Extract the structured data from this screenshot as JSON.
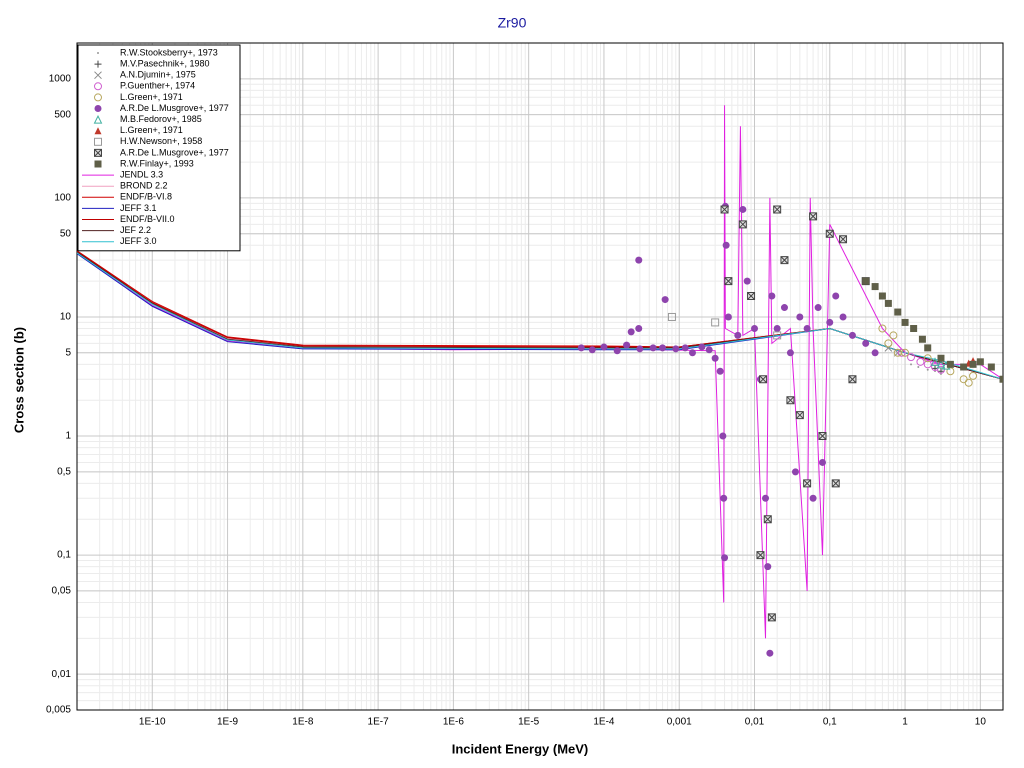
{
  "chart_data": {
    "type": "scatter",
    "title": "Zr90",
    "xlabel": "Incident Energy (MeV)",
    "ylabel": "Cross section (b)",
    "xscale": "log",
    "yscale": "log",
    "grid": true,
    "minor_grid": true,
    "legend": "upper left",
    "xlim": [
      1e-11,
      20
    ],
    "ylim": [
      0.005,
      2000
    ],
    "xticks": [
      {
        "value": 1e-10,
        "label": "1E-10"
      },
      {
        "value": 1e-09,
        "label": "1E-9"
      },
      {
        "value": 1e-08,
        "label": "1E-8"
      },
      {
        "value": 1e-07,
        "label": "1E-7"
      },
      {
        "value": 1e-06,
        "label": "1E-6"
      },
      {
        "value": 1e-05,
        "label": "1E-5"
      },
      {
        "value": 0.0001,
        "label": "1E-4"
      },
      {
        "value": 0.001,
        "label": "0,001"
      },
      {
        "value": 0.01,
        "label": "0,01"
      },
      {
        "value": 0.1,
        "label": "0,1"
      },
      1,
      10
    ],
    "yticks": [
      {
        "value": 0.005,
        "label": "0,005"
      },
      {
        "value": 0.01,
        "label": "0,01"
      },
      {
        "value": 0.05,
        "label": "0,05"
      },
      {
        "value": 0.1,
        "label": "0,1"
      },
      {
        "value": 0.5,
        "label": "0,5"
      },
      1,
      5,
      10,
      50,
      100,
      500,
      1000
    ],
    "series": [
      {
        "name": "R.W.Stooksberry+, 1973",
        "color": "#999999",
        "marker": "dot",
        "x": [
          1.2,
          1.5,
          2
        ],
        "values": [
          4,
          3.8,
          3.6
        ]
      },
      {
        "name": "M.V.Pasechnik+, 1980",
        "color": "#444444",
        "marker": "plus",
        "x": [
          2.5,
          3
        ],
        "values": [
          3.7,
          3.5
        ]
      },
      {
        "name": "A.N.Djumin+, 1975",
        "color": "#888888",
        "marker": "x",
        "x": [
          0.6,
          0.8
        ],
        "values": [
          5.5,
          5
        ]
      },
      {
        "name": "P.Guenther+, 1974",
        "color": "#d060d0",
        "marker": "circle-open",
        "x": [
          0.9,
          1.2,
          1.6,
          2,
          2.5,
          3
        ],
        "values": [
          5,
          4.6,
          4.2,
          4,
          3.8,
          3.6
        ]
      },
      {
        "name": "L.Green+, 1971",
        "color": "#b8a860",
        "marker": "circle-open",
        "x": [
          0.5,
          0.6,
          0.7,
          0.8,
          1,
          2,
          4,
          6,
          7,
          8
        ],
        "values": [
          8,
          6,
          7,
          5,
          5,
          4.5,
          3.5,
          3,
          2.8,
          3.2
        ]
      },
      {
        "name": "A.R.De L.Musgrove+, 1977",
        "color": "#8e44ad",
        "marker": "circle",
        "x": [
          5e-05,
          7e-05,
          0.0001,
          0.00015,
          0.0002,
          0.00023,
          0.00029,
          0.00029,
          0.0003,
          0.00045,
          0.0006,
          0.00065,
          0.0009,
          0.0012,
          0.0015,
          0.002,
          0.0025,
          0.003,
          0.0035,
          0.0038,
          0.0039,
          0.004,
          0.0041,
          0.0042,
          0.0045,
          0.006,
          0.007,
          0.008,
          0.01,
          0.012,
          0.014,
          0.015,
          0.016,
          0.017,
          0.02,
          0.025,
          0.03,
          0.035,
          0.04,
          0.05,
          0.06,
          0.07,
          0.08,
          0.1,
          0.12,
          0.15,
          0.2,
          0.3,
          0.4
        ],
        "values": [
          5.5,
          5.3,
          5.6,
          5.2,
          5.8,
          7.5,
          30,
          8,
          5.4,
          5.5,
          5.5,
          14,
          5.4,
          5.5,
          5,
          5.6,
          5.3,
          4.5,
          3.5,
          1,
          0.3,
          0.095,
          85,
          40,
          10,
          7,
          80,
          20,
          8,
          3,
          0.3,
          0.08,
          0.015,
          15,
          8,
          12,
          5,
          0.5,
          10,
          8,
          0.3,
          12,
          0.6,
          9,
          15,
          10,
          7,
          6,
          5
        ]
      },
      {
        "name": "M.B.Fedorov+, 1985",
        "color": "#40b0a0",
        "marker": "triangle-open",
        "x": [
          2.5,
          3,
          3.5
        ],
        "values": [
          4.2,
          4,
          3.9
        ]
      },
      {
        "name": "L.Green+, 1971",
        "color": "#c0392b",
        "marker": "triangle",
        "x": [
          7,
          8
        ],
        "values": [
          4.1,
          4.3
        ]
      },
      {
        "name": "H.W.Newson+, 1958",
        "color": "#999999",
        "marker": "square-open",
        "x": [
          0.0008,
          0.003,
          0.02
        ],
        "values": [
          10,
          9,
          7
        ]
      },
      {
        "name": "A.R.De L.Musgrove+, 1977",
        "color": "#444444",
        "marker": "boxx",
        "x": [
          0.004,
          0.0045,
          0.007,
          0.009,
          0.012,
          0.013,
          0.015,
          0.017,
          0.02,
          0.025,
          0.03,
          0.04,
          0.05,
          0.06,
          0.08,
          0.1,
          0.12,
          0.15,
          0.2,
          0.3
        ],
        "values": [
          80,
          20,
          60,
          15,
          0.1,
          3,
          0.2,
          0.03,
          80,
          30,
          2,
          1.5,
          0.4,
          70,
          1,
          50,
          0.4,
          45,
          3,
          20
        ]
      },
      {
        "name": "R.W.Finlay+, 1993",
        "color": "#5f5f48",
        "marker": "square",
        "x": [
          0.3,
          0.4,
          0.5,
          0.6,
          0.8,
          1,
          1.3,
          1.7,
          2,
          3,
          4,
          6,
          8,
          10,
          14,
          20
        ],
        "values": [
          20,
          18,
          15,
          13,
          11,
          9,
          8,
          6.5,
          5.5,
          4.5,
          4,
          3.8,
          4,
          4.2,
          3.8,
          3
        ]
      }
    ],
    "lines": [
      {
        "name": "JENDL 3.3",
        "color": "#e020e0",
        "x": [
          1e-11,
          1e-10,
          1e-09,
          1e-08,
          1e-06,
          0.0001,
          0.003,
          0.0039,
          0.004,
          0.0041,
          0.006,
          0.0065,
          0.007,
          0.01,
          0.014,
          0.016,
          0.017,
          0.03,
          0.05,
          0.055,
          0.06,
          0.08,
          0.1,
          0.5,
          1,
          3,
          10,
          20
        ],
        "values": [
          34,
          12.5,
          6.3,
          5.5,
          5.3,
          5.4,
          5.2,
          0.04,
          600,
          8,
          7,
          400,
          7,
          8,
          0.02,
          100,
          6,
          8,
          0.05,
          100,
          8,
          0.1,
          60,
          8,
          5,
          4,
          4,
          3
        ]
      },
      {
        "name": "BROND 2.2",
        "color": "#f0a0c0",
        "x": [
          1e-11,
          1e-10,
          1e-09,
          1e-08,
          0.0001,
          0.001,
          0.1,
          1,
          20
        ],
        "values": [
          35,
          13,
          6.6,
          5.7,
          5.6,
          5.5,
          8,
          5,
          3
        ]
      },
      {
        "name": "ENDF/B-VI.8",
        "color": "#d00000",
        "x": [
          1e-11,
          1e-10,
          1e-09,
          1e-08,
          0.0001,
          0.001,
          0.1,
          1,
          20
        ],
        "values": [
          36,
          13.5,
          6.8,
          5.8,
          5.7,
          5.6,
          8,
          5,
          3
        ]
      },
      {
        "name": "JEFF 3.1",
        "color": "#2020c0",
        "x": [
          1e-11,
          1e-10,
          1e-09,
          1e-08,
          0.0001,
          0.001,
          0.1,
          1,
          20
        ],
        "values": [
          34,
          12.3,
          6.2,
          5.4,
          5.3,
          5.3,
          8,
          5,
          3
        ]
      },
      {
        "name": "ENDF/B-VII.0",
        "color": "#c00000",
        "x": [
          1e-11,
          1e-10,
          1e-09,
          1e-08,
          0.0001,
          0.001,
          0.1,
          1,
          20
        ],
        "values": [
          35.5,
          13.2,
          6.7,
          5.7,
          5.6,
          5.6,
          8,
          5,
          3
        ]
      },
      {
        "name": "JEF 2.2",
        "color": "#502020",
        "x": [
          1e-11,
          1e-10,
          1e-09,
          1e-08,
          0.0001,
          0.001,
          0.1,
          1,
          20
        ],
        "values": [
          35,
          13,
          6.5,
          5.6,
          5.5,
          5.5,
          8,
          5,
          3
        ]
      },
      {
        "name": "JEFF 3.0",
        "color": "#30c0d0",
        "x": [
          1e-11,
          1e-10,
          1e-09,
          1e-08,
          0.0001,
          0.001,
          0.1,
          1,
          3,
          20
        ],
        "values": [
          34.5,
          12.8,
          6.4,
          5.5,
          5.4,
          5.4,
          8,
          5,
          4.3,
          3
        ]
      }
    ]
  }
}
